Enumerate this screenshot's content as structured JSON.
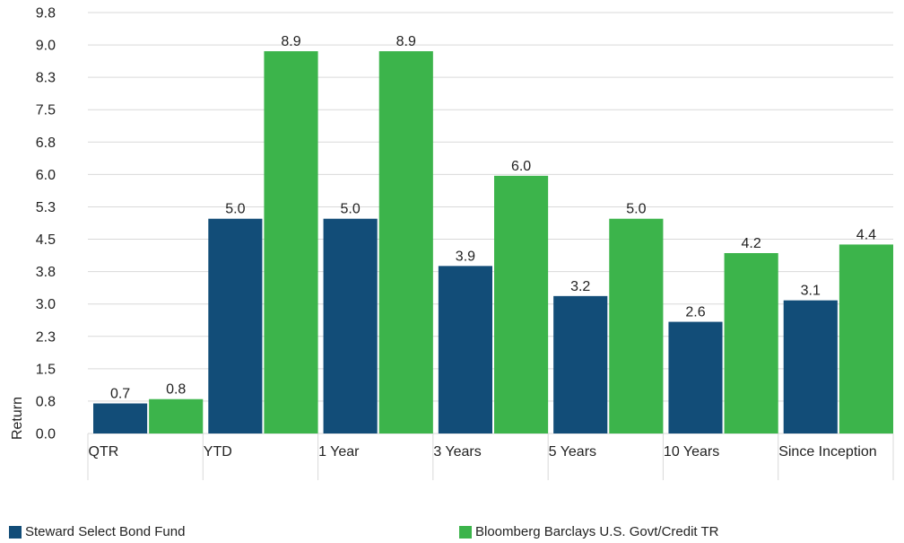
{
  "chart_data": {
    "type": "bar",
    "title": "",
    "xlabel": "",
    "ylabel": "Return",
    "ylim": [
      0,
      9.8
    ],
    "y_ticks": [
      "0.0",
      "0.8",
      "1.5",
      "2.3",
      "3.0",
      "3.8",
      "4.5",
      "5.3",
      "6.0",
      "6.8",
      "7.5",
      "8.3",
      "9.0",
      "9.8"
    ],
    "categories": [
      "QTR",
      "YTD",
      "1 Year",
      "3 Years",
      "5 Years",
      "10 Years",
      "Since Inception"
    ],
    "series": [
      {
        "name": "Steward Select Bond Fund",
        "color": "#124d78",
        "values": [
          0.7,
          5.0,
          5.0,
          3.9,
          3.2,
          2.6,
          3.1
        ],
        "labels": [
          "0.7",
          "5.0",
          "5.0",
          "3.9",
          "3.2",
          "2.6",
          "3.1"
        ]
      },
      {
        "name": "Bloomberg Barclays U.S. Govt/Credit TR",
        "color": "#3cb44b",
        "values": [
          0.8,
          8.9,
          8.9,
          6.0,
          5.0,
          4.2,
          4.4
        ],
        "labels": [
          "0.8",
          "8.9",
          "8.9",
          "6.0",
          "5.0",
          "4.2",
          "4.4"
        ]
      }
    ],
    "grid": "horizontal",
    "legend_position": "bottom"
  }
}
